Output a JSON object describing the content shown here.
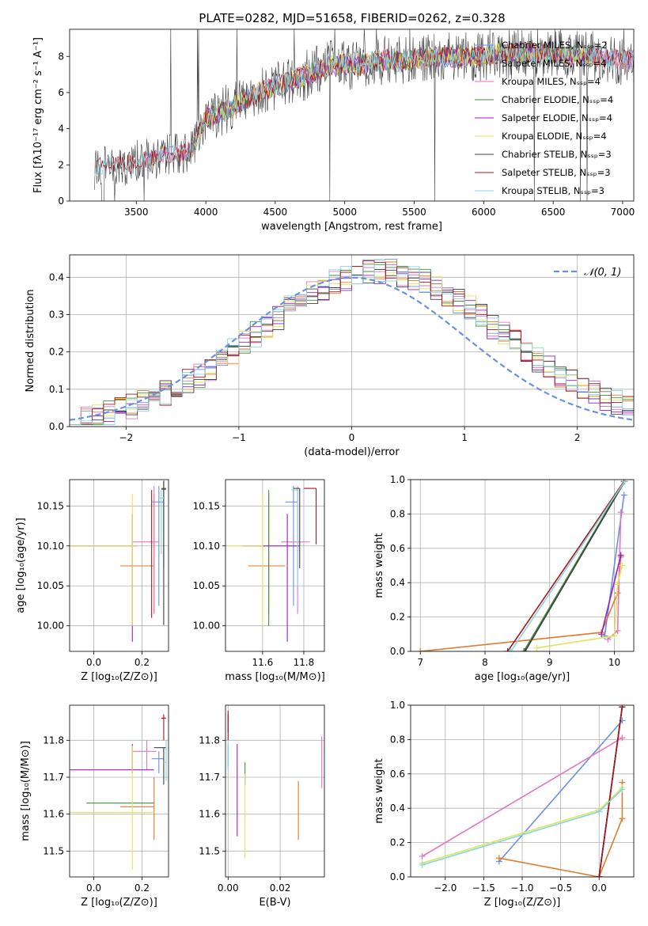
{
  "figure": {
    "title": "PLATE=0282, MJD=51658, FIBERID=0262, z=0.328",
    "series_colors": [
      "#6a91e0",
      "#e07a2e",
      "#e377c2",
      "#3f8f3f",
      "#9b1fbb",
      "#dfe55a",
      "#404040",
      "#a8171c",
      "#86d6e0"
    ]
  },
  "chart_data": [
    {
      "id": "spectrum",
      "type": "line",
      "title": "PLATE=0282, MJD=51658, FIBERID=0262, z=0.328",
      "xlabel": "wavelength [Angstrom, rest frame]",
      "ylabel": "Flux [fλ10⁻¹⁷ erg cm⁻² s⁻¹ A⁻¹]",
      "xlim": [
        3020,
        7080
      ],
      "ylim": [
        0,
        9.5
      ],
      "xticks": [
        3500,
        4000,
        4500,
        5000,
        5500,
        6000,
        6500,
        7000
      ],
      "yticks": [
        0,
        2,
        4,
        6,
        8
      ],
      "legend_position": "right",
      "legend": [
        "Chabrier MILES, N_SSP=2",
        "Salpeter MILES, N_SSP=4",
        "Kroupa MILES, N_SSP=4",
        "Chabrier ELODIE, N_SSP=4",
        "Salpeter ELODIE, N_SSP=4",
        "Kroupa ELODIE, N_SSP=4",
        "Chabrier STELIB, N_SSP=3",
        "Salpeter STELIB, N_SSP=3",
        "Kroupa STELIB, N_SSP=3"
      ],
      "continuum": {
        "x": [
          3200,
          3300,
          3400,
          3500,
          3600,
          3700,
          3800,
          3900,
          4000,
          4100,
          4200,
          4300,
          4400,
          4500,
          4600,
          4700,
          4800,
          4900,
          5000,
          5100,
          5200,
          5300,
          5400,
          5500,
          5600,
          5700,
          5800,
          5900,
          6000,
          6100,
          6200,
          6300,
          6400,
          6500,
          6600,
          6700,
          6800,
          6900,
          7000
        ],
        "y": [
          1.8,
          2.1,
          2.0,
          2.2,
          2.3,
          2.5,
          2.6,
          2.9,
          4.6,
          4.9,
          5.2,
          5.7,
          6.1,
          6.3,
          6.6,
          6.9,
          7.2,
          7.5,
          7.6,
          7.4,
          7.7,
          7.8,
          7.7,
          7.9,
          7.9,
          8.0,
          7.9,
          8.0,
          8.0,
          8.2,
          8.1,
          8.2,
          8.1,
          8.2,
          8.1,
          8.0,
          8.0,
          7.9,
          7.8
        ]
      },
      "data_range_by_model": {
        "MILES": [
          3540,
          7080
        ],
        "ELODIE": [
          3900,
          6800
        ],
        "STELIB": [
          3200,
          7080
        ]
      }
    },
    {
      "id": "residuals",
      "type": "histogram",
      "xlabel": "(data-model)/error",
      "ylabel": "Normed distribution",
      "xlim": [
        -2.5,
        2.5
      ],
      "ylim": [
        0,
        0.46
      ],
      "xticks": [
        -2,
        -1,
        0,
        1,
        2
      ],
      "yticks": [
        0.0,
        0.1,
        0.2,
        0.3,
        0.4
      ],
      "grid": true,
      "legend_position": "top-right",
      "reference_curve": {
        "name": "𝒩(0, 1)",
        "mean": 0,
        "sigma": 1
      }
    },
    {
      "id": "age_vs_Z",
      "type": "errorbar",
      "xlabel": "Z [log₁₀(Z/Z⊙)]",
      "ylabel": "age  [log₁₀(age/yr)]",
      "xlim": [
        -0.1,
        0.31
      ],
      "ylim": [
        9.968,
        10.183
      ],
      "xticks": [
        0.0,
        0.2
      ],
      "yticks": [
        10.0,
        10.05,
        10.1,
        10.15
      ],
      "grid": true,
      "points": [
        {
          "x": 0.27,
          "y": 10.155,
          "xerr": [
            0.03,
            0.02
          ],
          "yerr": [
            0.13,
            0.02
          ]
        },
        {
          "x": 0.25,
          "y": 10.075,
          "xerr": [
            0.14,
            0.0
          ],
          "yerr": [
            0.06,
            0.09
          ]
        },
        {
          "x": 0.25,
          "y": 10.105,
          "xerr": [
            0.09,
            0.02
          ],
          "yerr": [
            0.09,
            0.07
          ]
        },
        {
          "x": 0.29,
          "y": 10.172,
          "xerr": [
            0.01,
            0.01
          ],
          "yerr": [
            0.1,
            0.01
          ]
        },
        {
          "x": 0.16,
          "y": 10.1,
          "xerr": [
            0.26,
            0.02
          ],
          "yerr": [
            0.12,
            0.04
          ]
        },
        {
          "x": 0.16,
          "y": 10.1,
          "xerr": [
            0.26,
            0.02
          ],
          "yerr": [
            0.1,
            0.065
          ]
        },
        {
          "x": 0.29,
          "y": 10.171,
          "xerr": [
            0.01,
            0.01
          ],
          "yerr": [
            0.17,
            0.01
          ]
        },
        {
          "x": 0.24,
          "y": 10.16,
          "xerr": [
            0.0,
            0.0
          ],
          "yerr": [
            0.15,
            0.01
          ]
        },
        {
          "x": 0.28,
          "y": 10.16,
          "xerr": [
            0.01,
            0.01
          ],
          "yerr": [
            0.07,
            0.01
          ]
        }
      ]
    },
    {
      "id": "age_vs_mass",
      "type": "errorbar",
      "xlabel": "mass [log₁₀(M/M⊙)]",
      "ylabel": "",
      "xlim": [
        11.42,
        11.9
      ],
      "ylim": [
        9.968,
        10.183
      ],
      "xticks": [
        11.6,
        11.8
      ],
      "yticks": [
        10.0,
        10.05,
        10.1,
        10.15
      ],
      "grid": true,
      "points": [
        {
          "x": 11.75,
          "y": 10.155,
          "xerr": [
            0.04,
            0.02
          ],
          "yerr": [
            0.13,
            0.02
          ]
        },
        {
          "x": 11.63,
          "y": 10.075,
          "xerr": [
            0.1,
            0.08
          ],
          "yerr": [
            0.06,
            0.09
          ]
        },
        {
          "x": 11.77,
          "y": 10.105,
          "xerr": [
            0.08,
            0.06
          ],
          "yerr": [
            0.09,
            0.07
          ]
        },
        {
          "x": 11.63,
          "y": 10.1,
          "xerr": [
            0.0,
            0.0
          ],
          "yerr": [
            0.1,
            0.07
          ]
        },
        {
          "x": 11.72,
          "y": 10.1,
          "xerr": [
            0.22,
            0.06
          ],
          "yerr": [
            0.12,
            0.04
          ]
        },
        {
          "x": 11.6,
          "y": 10.1,
          "xerr": [
            0.17,
            0.0
          ],
          "yerr": [
            0.1,
            0.065
          ]
        },
        {
          "x": 11.78,
          "y": 10.172,
          "xerr": [
            0.03,
            0.0
          ],
          "yerr": [
            0.1,
            0.0
          ]
        },
        {
          "x": 11.86,
          "y": 10.172,
          "xerr": [
            0.06,
            0.0
          ],
          "yerr": [
            0.07,
            0.0
          ]
        },
        {
          "x": 11.77,
          "y": 10.17,
          "xerr": [
            0.03,
            0.0
          ],
          "yerr": [
            0.12,
            0.0
          ]
        }
      ]
    },
    {
      "id": "weight_vs_age",
      "type": "line",
      "xlabel": "age  [log₁₀(age/yr)]",
      "ylabel": "mass weight",
      "xlim": [
        6.85,
        10.3
      ],
      "ylim": [
        0,
        1.0
      ],
      "xticks": [
        7,
        8,
        9,
        10
      ],
      "yticks": [
        0.0,
        0.2,
        0.4,
        0.6,
        0.8,
        1.0
      ],
      "grid": true,
      "series": [
        {
          "x": [
            9.85,
            10.15
          ],
          "y": [
            0.09,
            0.91
          ]
        },
        {
          "x": [
            7.0,
            9.8,
            10.05,
            10.1
          ],
          "y": [
            0.0,
            0.11,
            0.34,
            0.55
          ]
        },
        {
          "x": [
            9.9,
            10.05,
            10.1
          ],
          "y": [
            0.07,
            0.12,
            0.81
          ]
        },
        {
          "x": [
            8.6,
            10.15
          ],
          "y": [
            0.0,
            0.99
          ]
        },
        {
          "x": [
            9.8,
            10.1
          ],
          "y": [
            0.1,
            0.56
          ]
        },
        {
          "x": [
            8.8,
            10.0,
            10.05,
            10.12
          ],
          "y": [
            0.02,
            0.09,
            0.39,
            0.5
          ]
        },
        {
          "x": [
            8.62,
            10.16
          ],
          "y": [
            0.0,
            0.99
          ]
        },
        {
          "x": [
            8.35,
            10.15
          ],
          "y": [
            0.0,
            0.99
          ]
        },
        {
          "x": [
            8.4,
            10.16
          ],
          "y": [
            0.0,
            0.99
          ]
        }
      ]
    },
    {
      "id": "mass_vs_Z",
      "type": "errorbar",
      "xlabel": "Z [log₁₀(Z/Z⊙)]",
      "ylabel": "mass [log₁₀(M/M⊙)]",
      "xlim": [
        -0.1,
        0.31
      ],
      "ylim": [
        11.43,
        11.895
      ],
      "xticks": [
        0.0,
        0.2
      ],
      "yticks": [
        11.5,
        11.6,
        11.7,
        11.8
      ],
      "grid": true,
      "points": [
        {
          "x": 0.27,
          "y": 11.75,
          "xerr": [
            0.03,
            0.02
          ],
          "yerr": [
            0.04,
            0.02
          ]
        },
        {
          "x": 0.25,
          "y": 11.62,
          "xerr": [
            0.14,
            0.0
          ],
          "yerr": [
            0.09,
            0.08
          ]
        },
        {
          "x": 0.22,
          "y": 11.77,
          "xerr": [
            0.06,
            0.04
          ],
          "yerr": [
            0.05,
            0.03
          ]
        },
        {
          "x": 0.25,
          "y": 11.63,
          "xerr": [
            0.28,
            0.0
          ],
          "yerr": [
            0.0,
            0.0
          ]
        },
        {
          "x": 0.16,
          "y": 11.72,
          "xerr": [
            0.26,
            0.09
          ],
          "yerr": [
            0.01,
            0.07
          ]
        },
        {
          "x": 0.16,
          "y": 11.605,
          "xerr": [
            0.26,
            0.09
          ],
          "yerr": [
            0.155,
            0.18
          ]
        },
        {
          "x": 0.29,
          "y": 11.78,
          "xerr": [
            0.04,
            0.01
          ],
          "yerr": [
            0.1,
            0.0
          ]
        },
        {
          "x": 0.29,
          "y": 11.86,
          "xerr": [
            0.01,
            0.01
          ],
          "yerr": [
            0.06,
            0.01
          ]
        },
        {
          "x": 0.3,
          "y": 11.74,
          "xerr": [
            0.01,
            0.0
          ],
          "yerr": [
            0.05,
            0.06
          ]
        }
      ]
    },
    {
      "id": "mass_vs_EBV",
      "type": "errorbar",
      "xlabel": "E(B-V)",
      "ylabel": "",
      "xlim": [
        -0.001,
        0.037
      ],
      "ylim": [
        11.43,
        11.895
      ],
      "xticks": [
        0.0,
        0.02
      ],
      "yticks": [
        11.5,
        11.6,
        11.7,
        11.8
      ],
      "grid": true,
      "points": [
        {
          "x": 0.0,
          "y": 11.77,
          "yerr": [
            0.04,
            0.02
          ]
        },
        {
          "x": 0.027,
          "y": 11.62,
          "yerr": [
            0.09,
            0.07
          ]
        },
        {
          "x": 0.036,
          "y": 11.77,
          "yerr": [
            0.1,
            0.04
          ]
        },
        {
          "x": 0.0065,
          "y": 11.72,
          "yerr": [
            0.04,
            0.02
          ]
        },
        {
          "x": 0.0035,
          "y": 11.69,
          "yerr": [
            0.15,
            0.1
          ]
        },
        {
          "x": 0.0065,
          "y": 11.58,
          "yerr": [
            0.1,
            0.13
          ]
        },
        {
          "x": 0.0,
          "y": 11.85,
          "yerr": [
            0.03,
            0.02
          ]
        },
        {
          "x": 0.0,
          "y": 11.85,
          "yerr": [
            0.05,
            0.03
          ]
        },
        {
          "x": 0.0,
          "y": 11.76,
          "yerr": [
            0.04,
            0.04
          ]
        }
      ]
    },
    {
      "id": "weight_vs_Z",
      "type": "line",
      "xlabel": "Z [log₁₀(Z/Z⊙)]",
      "ylabel": "mass weight",
      "xlim": [
        -2.45,
        0.45
      ],
      "ylim": [
        0,
        1.0
      ],
      "xticks": [
        -2.0,
        -1.5,
        -1.0,
        -0.5,
        0.0
      ],
      "yticks": [
        0.0,
        0.2,
        0.4,
        0.6,
        0.8,
        1.0
      ],
      "grid": true,
      "series": [
        {
          "x": [
            -1.3,
            0.3
          ],
          "y": [
            0.09,
            0.91
          ]
        },
        {
          "x": [
            -1.3,
            0.0,
            0.3,
            0.3
          ],
          "y": [
            0.11,
            0.0,
            0.34,
            0.55
          ]
        },
        {
          "x": [
            -2.3,
            0.3
          ],
          "y": [
            0.12,
            0.81
          ]
        },
        {
          "x": [
            0.0,
            0.3
          ],
          "y": [
            0.0,
            0.99
          ]
        },
        {
          "x": [
            0.0,
            0.3
          ],
          "y": [
            0.0,
            0.99
          ]
        },
        {
          "x": [
            -2.3,
            0.0,
            0.3
          ],
          "y": [
            0.08,
            0.39,
            0.52
          ]
        },
        {
          "x": [
            0.0,
            0.3
          ],
          "y": [
            0.0,
            0.99
          ]
        },
        {
          "x": [
            0.0,
            0.3
          ],
          "y": [
            0.0,
            0.99
          ]
        },
        {
          "x": [
            -2.3,
            0.0,
            0.3
          ],
          "y": [
            0.07,
            0.38,
            0.51
          ]
        }
      ]
    }
  ]
}
